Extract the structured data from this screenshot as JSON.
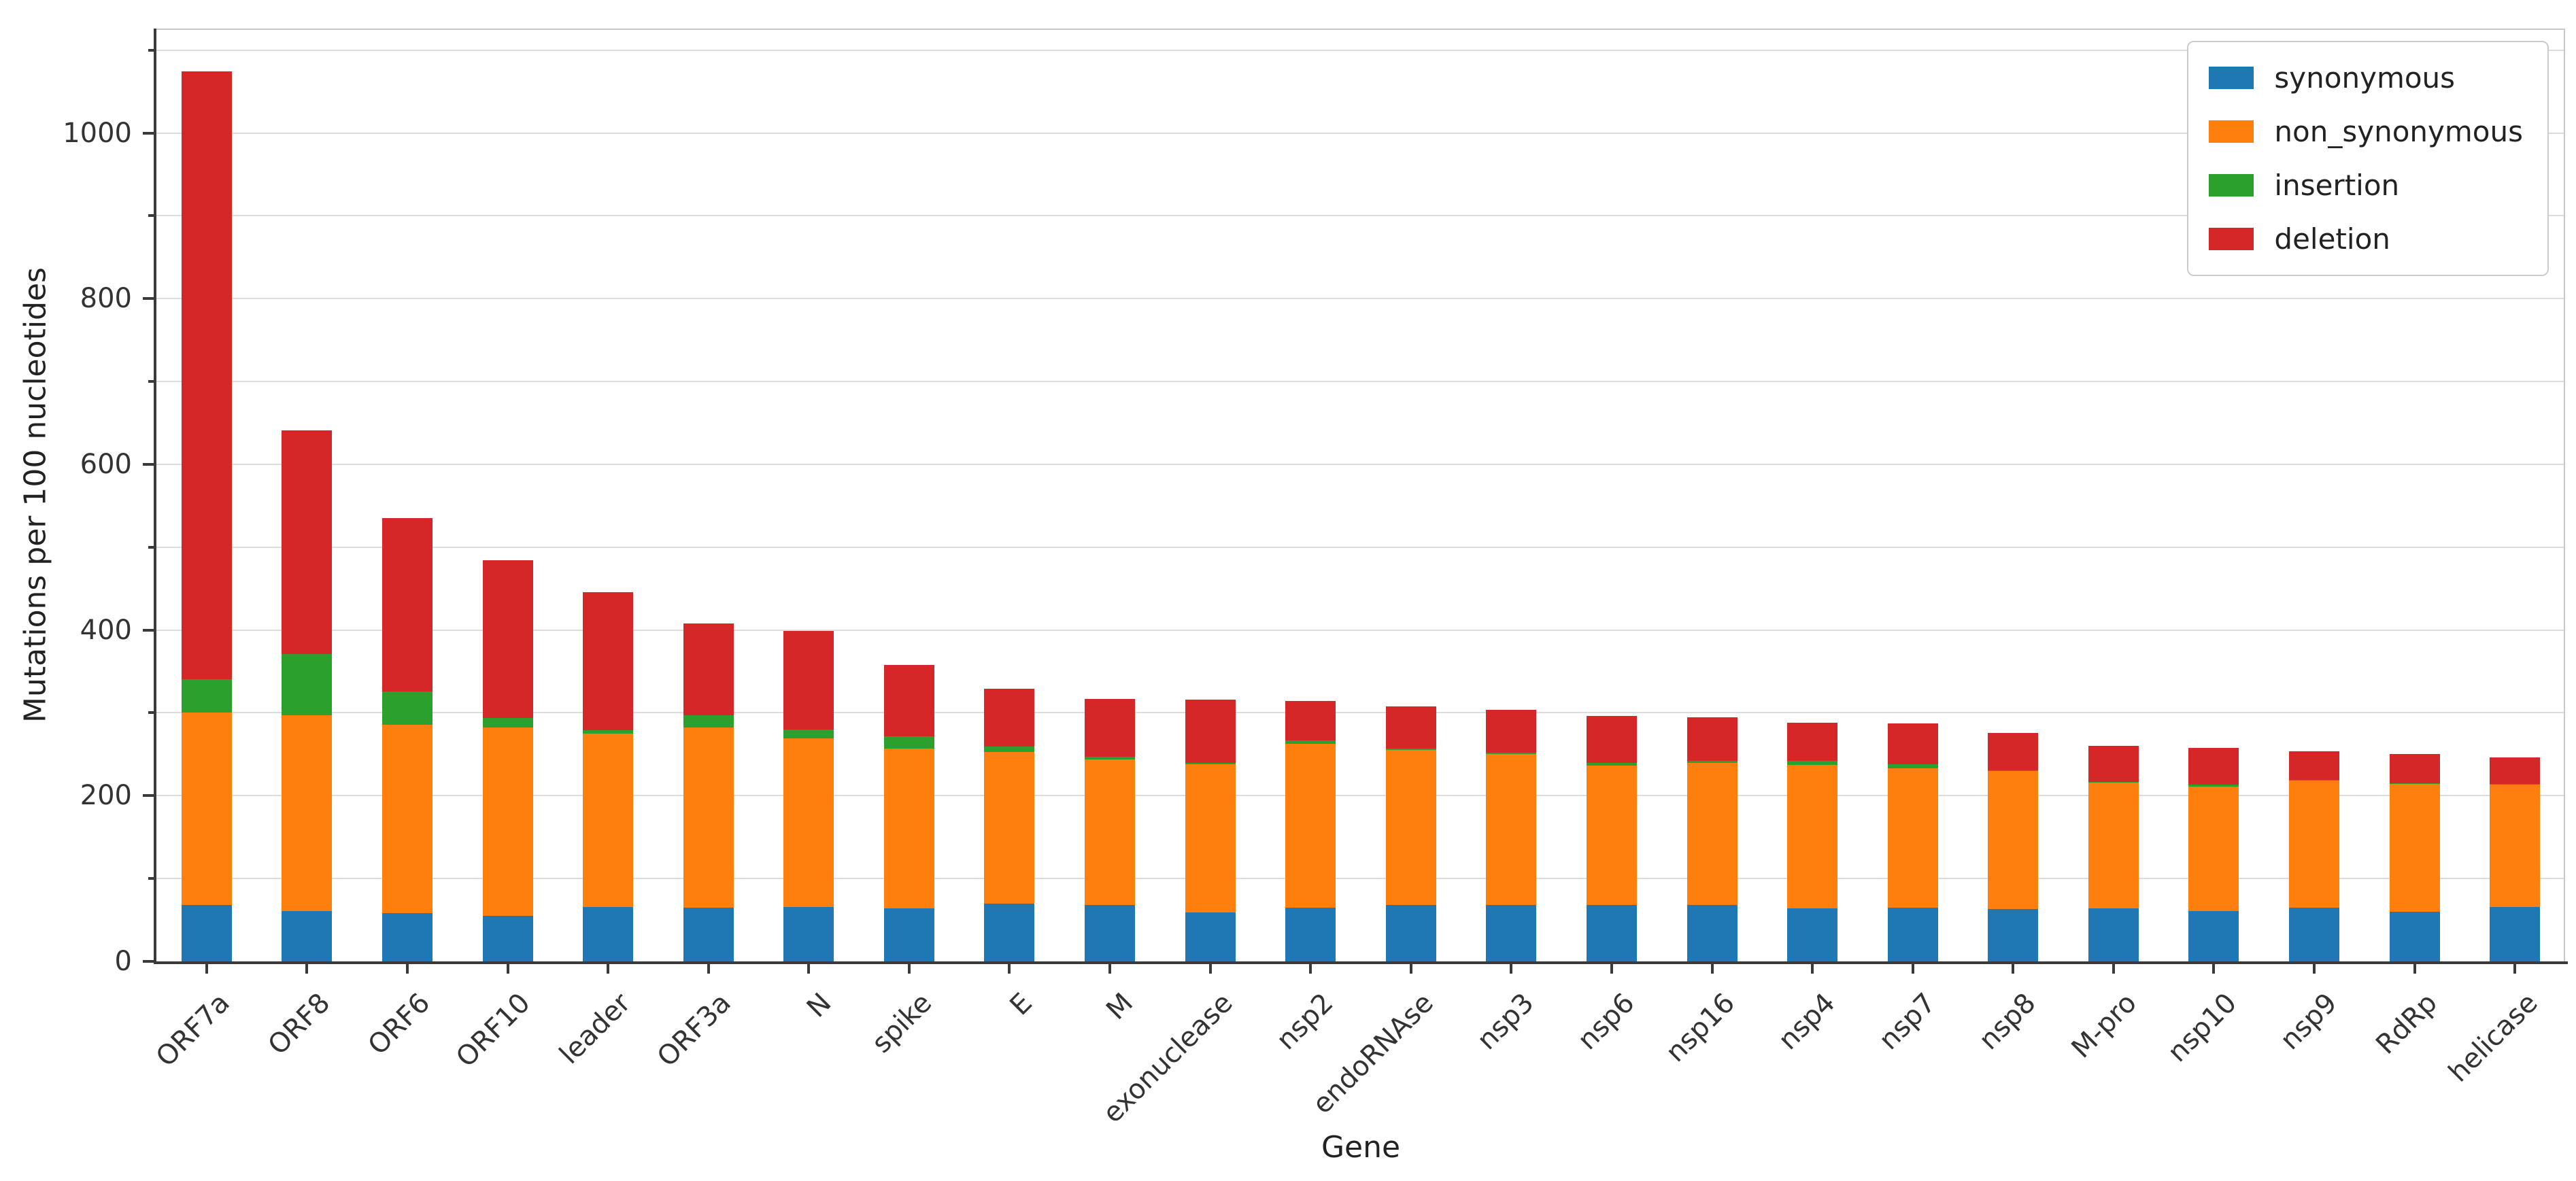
{
  "chart_data": {
    "type": "bar",
    "stacked": true,
    "title": "",
    "xlabel": "Gene",
    "ylabel": "Mutations per 100 nucleotides",
    "ylim": [
      0,
      1126
    ],
    "ytick_major_step": 200,
    "ytick_major_labels": [
      "0",
      "200",
      "400",
      "600",
      "800",
      "1000"
    ],
    "gridline_step": 100,
    "grid": true,
    "legend_position": "upper right",
    "categories": [
      "ORF7a",
      "ORF8",
      "ORF6",
      "ORF10",
      "leader",
      "ORF3a",
      "N",
      "spike",
      "E",
      "M",
      "exonuclease",
      "nsp2",
      "endoRNAse",
      "nsp3",
      "nsp6",
      "nsp16",
      "nsp4",
      "nsp7",
      "nsp8",
      "M-pro",
      "nsp10",
      "nsp9",
      "RdRp",
      "helicase"
    ],
    "series": [
      {
        "name": "synonymous",
        "color": "#1f77b4",
        "values": [
          68,
          61,
          58,
          55,
          66,
          65,
          66,
          64,
          70,
          68,
          59,
          65,
          68,
          68,
          68,
          68,
          64,
          65,
          63,
          64,
          61,
          65,
          60,
          66
        ]
      },
      {
        "name": "non_synonymous",
        "color": "#ff7f0e",
        "values": [
          232,
          236,
          228,
          227,
          209,
          217,
          203,
          193,
          183,
          176,
          179,
          198,
          187,
          182,
          168,
          172,
          173,
          168,
          167,
          152,
          150,
          153,
          154,
          147
        ]
      },
      {
        "name": "insertion",
        "color": "#2ca02c",
        "values": [
          41,
          74,
          40,
          12,
          4,
          15,
          11,
          15,
          6,
          3,
          2,
          4,
          2,
          2,
          4,
          2,
          5,
          5,
          1,
          1,
          2,
          1,
          1,
          1
        ]
      },
      {
        "name": "deletion",
        "color": "#d62728",
        "values": [
          733,
          270,
          209,
          190,
          167,
          111,
          119,
          86,
          70,
          70,
          76,
          47,
          51,
          52,
          56,
          53,
          46,
          49,
          45,
          43,
          45,
          35,
          35,
          32
        ]
      }
    ],
    "bar_totals": [
      1074,
      641,
      535,
      484,
      446,
      408,
      399,
      358,
      329,
      317,
      316,
      314,
      308,
      304,
      296,
      295,
      288,
      287,
      276,
      260,
      258,
      254,
      250,
      246
    ]
  },
  "layout_colors": {
    "grid": "#dcdcdc",
    "spine": "#3a3a3a",
    "tick_label": "#333333",
    "background": "#ffffff"
  }
}
